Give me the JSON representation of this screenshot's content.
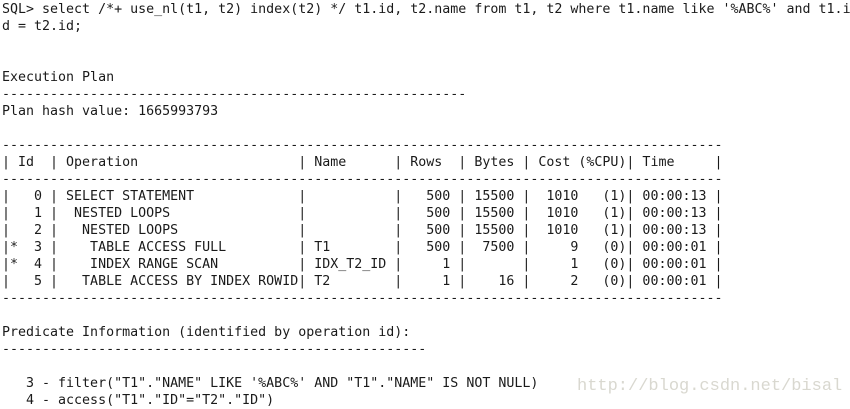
{
  "terminal": {
    "sql": {
      "display_lines": [
        "SQL> select /*+ use_nl(t1, t2) index(t2) */ t1.id, t2.name from t1, t2 where t1.name like '%ABC%' and t1.i",
        "d = t2.id;"
      ],
      "prompt": "SQL>",
      "statement": "select /*+ use_nl(t1, t2) index(t2) */ t1.id, t2.name from t1, t2 where t1.name like '%ABC%' and t1.id = t2.id;"
    },
    "execution_plan": {
      "title": "Execution Plan",
      "separator_dashes": 58,
      "plan_hash_line": "Plan hash value: 1665993793",
      "plan_hash_value": "1665993793"
    },
    "plan_table": {
      "border_dashes": 90,
      "header_cells": [
        " Id  ",
        " Operation                    ",
        " Name      ",
        " Rows  ",
        " Bytes ",
        " Cost (%CPU)",
        " Time     "
      ],
      "columns": [
        "Id",
        "Operation",
        "Name",
        "Rows",
        "Bytes",
        "Cost (%CPU)",
        "Time"
      ],
      "rows": [
        [
          "   0 ",
          " SELECT STATEMENT             ",
          "           ",
          "   500 ",
          " 15500 ",
          "  1010   (1)",
          " 00:00:13 "
        ],
        [
          "   1 ",
          "  NESTED LOOPS                ",
          "           ",
          "   500 ",
          " 15500 ",
          "  1010   (1)",
          " 00:00:13 "
        ],
        [
          "   2 ",
          "   NESTED LOOPS               ",
          "           ",
          "   500 ",
          " 15500 ",
          "  1010   (1)",
          " 00:00:13 "
        ],
        [
          "*  3 ",
          "    TABLE ACCESS FULL         ",
          " T1        ",
          "   500 ",
          "  7500 ",
          "     9   (0)",
          " 00:00:01 "
        ],
        [
          "*  4 ",
          "    INDEX RANGE SCAN          ",
          " IDX_T2_ID ",
          "     1 ",
          "       ",
          "     1   (0)",
          " 00:00:01 "
        ],
        [
          "   5 ",
          "   TABLE ACCESS BY INDEX ROWID",
          " T2        ",
          "     1 ",
          "    16 ",
          "     2   (0)",
          " 00:00:01 "
        ]
      ]
    },
    "predicate_info": {
      "title": "Predicate Information (identified by operation id):",
      "separator_dashes": 53,
      "lines": [
        "   3 - filter(\"T1\".\"NAME\" LIKE '%ABC%' AND \"T1\".\"NAME\" IS NOT NULL)",
        "   4 - access(\"T1\".\"ID\"=\"T2\".\"ID\")"
      ]
    }
  },
  "watermark": {
    "text": "http://blog.csdn.net/bisal",
    "color": "#d9d8d0"
  },
  "colors": {
    "background": "#ffffff",
    "text": "#1a1a1a"
  }
}
